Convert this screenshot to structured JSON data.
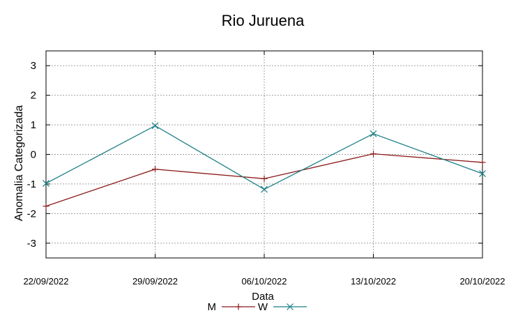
{
  "chart_data": {
    "type": "line",
    "title": "Rio Juruena",
    "xlabel": "Data",
    "ylabel": "Anomalia Categorizada",
    "x": [
      "22/09/2022",
      "29/09/2022",
      "06/10/2022",
      "13/10/2022",
      "20/10/2022"
    ],
    "xlim": [
      "22/09/2022",
      "20/10/2022"
    ],
    "ylim": [
      -3.5,
      3.5
    ],
    "yticks": [
      3,
      2,
      1,
      0,
      -1,
      -2,
      -3
    ],
    "ytick_labels": [
      "3",
      "2",
      "1",
      "0",
      "-1",
      "-2",
      "-3"
    ],
    "grid": true,
    "legend": "bottom-center",
    "series": [
      {
        "name": "M",
        "color": "#8b1a1a",
        "marker": "plus",
        "values": [
          -1.75,
          -0.5,
          -0.82,
          0.02,
          -0.27
        ]
      },
      {
        "name": "W",
        "color": "#1a7f86",
        "marker": "cross",
        "values": [
          -0.98,
          0.97,
          -1.18,
          0.7,
          -0.65
        ]
      }
    ]
  }
}
